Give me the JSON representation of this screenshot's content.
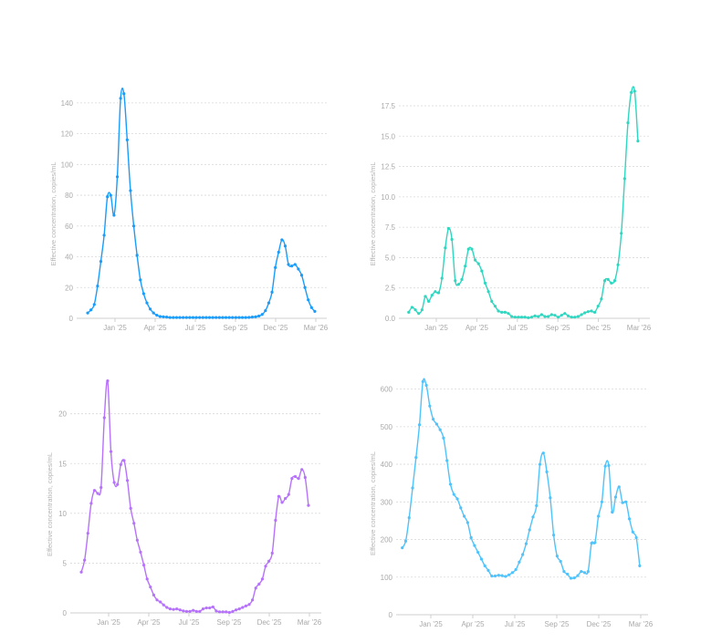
{
  "chart_data": [
    {
      "type": "line",
      "title": "",
      "xlabel": "",
      "ylabel": "Effective concentration, copies/mL",
      "color": "#1a9cfb",
      "ylim": [
        0,
        150
      ],
      "yticks": [
        0,
        20,
        40,
        60,
        80,
        100,
        120,
        140
      ],
      "xtick_labels": [
        "Jan '25",
        "Apr '25",
        "Jul '25",
        "Sep '25",
        "Dec '25",
        "Mar '26"
      ],
      "xtick_positions_weeks": [
        8.3,
        20.5,
        32.7,
        44.9,
        57.1,
        69.3
      ],
      "grid": true,
      "x_unit": "weeks since first sample",
      "values": [
        3.5,
        5.5,
        9,
        21,
        37,
        54,
        79,
        80,
        67,
        92,
        143,
        146,
        116,
        83,
        60,
        41,
        25,
        16,
        10,
        6,
        3.5,
        2,
        1.2,
        1,
        0.8,
        0.5,
        0.5,
        0.5,
        0.5,
        0.5,
        0.5,
        0.5,
        0.5,
        0.5,
        0.5,
        0.5,
        0.5,
        0.5,
        0.5,
        0.5,
        0.5,
        0.5,
        0.5,
        0.5,
        0.5,
        0.5,
        0.5,
        0.5,
        0.5,
        0.6,
        0.8,
        1,
        1.5,
        2.5,
        5,
        10,
        17,
        33,
        43,
        51,
        47,
        35,
        34,
        35,
        32,
        28,
        20,
        12,
        7,
        4.5
      ]
    },
    {
      "type": "line",
      "title": "",
      "xlabel": "",
      "ylabel": "Effective concentration, copies/mL",
      "color": "#2fd6c0",
      "ylim": [
        0,
        19
      ],
      "yticks": [
        "0.0",
        "2.5",
        "5.0",
        "7.5",
        "10.0",
        "12.5",
        "15.0",
        "17.5"
      ],
      "xtick_labels": [
        "Jan '25",
        "Apr '25",
        "Jul '25",
        "Sep '25",
        "Dec '25",
        "Mar '26"
      ],
      "xtick_positions_weeks": [
        8.3,
        20.5,
        32.7,
        44.9,
        57.1,
        69.3
      ],
      "grid": true,
      "x_unit": "weeks since first sample",
      "values": [
        0.5,
        0.9,
        0.7,
        0.4,
        0.7,
        1.8,
        1.4,
        1.9,
        2.2,
        2.1,
        3.3,
        5.8,
        7.4,
        6.5,
        3.1,
        2.8,
        3.2,
        4.3,
        5.7,
        5.7,
        4.8,
        4.5,
        3.9,
        2.9,
        2.2,
        1.4,
        1.0,
        0.6,
        0.5,
        0.5,
        0.4,
        0.15,
        0.1,
        0.1,
        0.1,
        0.1,
        0.05,
        0.1,
        0.2,
        0.15,
        0.3,
        0.15,
        0.15,
        0.3,
        0.25,
        0.1,
        0.25,
        0.4,
        0.2,
        0.1,
        0.1,
        0.15,
        0.3,
        0.45,
        0.55,
        0.6,
        0.5,
        1.0,
        1.6,
        3.1,
        3.2,
        2.9,
        3.1,
        4.4,
        7.0,
        11.5,
        16.1,
        18.6,
        18.7,
        14.6
      ]
    },
    {
      "type": "line",
      "title": "",
      "xlabel": "",
      "ylabel": "Effective concentration, copies/mL",
      "color": "#b672fb",
      "ylim": [
        0,
        24
      ],
      "yticks": [
        0,
        5,
        10,
        15,
        20
      ],
      "xtick_labels": [
        "Jan '25",
        "Apr '25",
        "Jul '25",
        "Sep '25",
        "Dec '25",
        "Mar '26"
      ],
      "xtick_positions_weeks": [
        8.3,
        20.5,
        32.7,
        44.9,
        57.1,
        69.3
      ],
      "grid": true,
      "x_unit": "weeks since first sample",
      "values": [
        4.1,
        5.3,
        8,
        11,
        12.3,
        12,
        12.6,
        19.6,
        23.3,
        16.2,
        13.1,
        12.9,
        14.9,
        15.3,
        13.3,
        10.5,
        9,
        7.3,
        6.1,
        4.8,
        3.4,
        2.6,
        1.8,
        1.3,
        1.1,
        0.8,
        0.55,
        0.4,
        0.35,
        0.4,
        0.3,
        0.2,
        0.15,
        0.15,
        0.25,
        0.15,
        0.15,
        0.4,
        0.5,
        0.5,
        0.6,
        0.2,
        0.1,
        0.1,
        0.1,
        0.05,
        0.15,
        0.3,
        0.4,
        0.55,
        0.7,
        0.85,
        1.3,
        2.5,
        2.9,
        3.4,
        4.7,
        5.2,
        6.0,
        9.3,
        11.7,
        11.1,
        11.5,
        11.9,
        13.5,
        13.7,
        13.5,
        14.4,
        13.6,
        10.8
      ]
    },
    {
      "type": "line",
      "title": "",
      "xlabel": "",
      "ylabel": "Effective concentration, copies/mL",
      "color": "#4fc3fb",
      "ylim": [
        0,
        650
      ],
      "yticks": [
        0,
        100,
        200,
        300,
        400,
        500,
        600
      ],
      "xtick_labels": [
        "Jan '25",
        "Apr '25",
        "Jul '25",
        "Sep '25",
        "Dec '25",
        "Mar '26"
      ],
      "xtick_positions_weeks": [
        8.3,
        20.5,
        32.7,
        44.9,
        57.1,
        69.3
      ],
      "grid": true,
      "x_unit": "weeks since first sample",
      "values": [
        178,
        196,
        258,
        337,
        418,
        505,
        620,
        610,
        555,
        520,
        507,
        492,
        470,
        410,
        347,
        320,
        308,
        284,
        262,
        245,
        205,
        184,
        166,
        148,
        130,
        118,
        103,
        103,
        105,
        104,
        102,
        106,
        112,
        120,
        140,
        160,
        189,
        226,
        260,
        290,
        400,
        430,
        380,
        311,
        212,
        156,
        142,
        115,
        108,
        97,
        98,
        104,
        115,
        112,
        115,
        190,
        192,
        262,
        300,
        395,
        397,
        273,
        313,
        340,
        298,
        300,
        255,
        220,
        205,
        130
      ]
    }
  ]
}
